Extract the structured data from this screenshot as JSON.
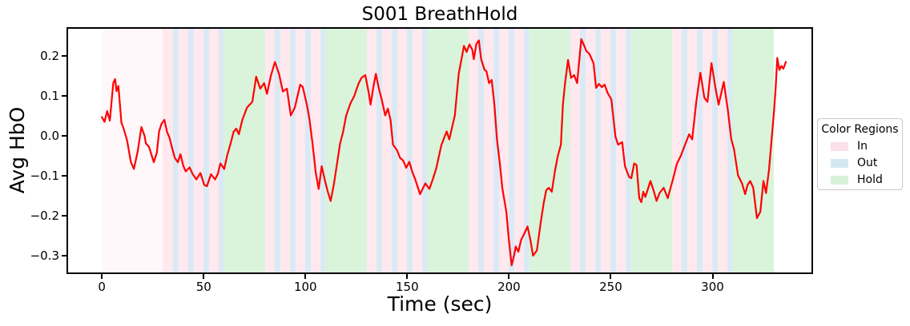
{
  "figure": {
    "title": "S001 BreathHold",
    "xlabel": "Time (sec)",
    "ylabel": "Avg HbO"
  },
  "axes": {
    "xtick_labels": [
      "0",
      "50",
      "100",
      "150",
      "200",
      "250",
      "300"
    ],
    "ytick_labels": [
      "0.2",
      "0.1",
      "0.0",
      "−0.1",
      "−0.2",
      "−0.3"
    ]
  },
  "legend": {
    "title": "Color Regions",
    "items": [
      {
        "label": "In",
        "color": "#fbdfe9"
      },
      {
        "label": "Out",
        "color": "#d4e8f3"
      },
      {
        "label": "Hold",
        "color": "#d7f2d9"
      }
    ]
  },
  "chart_data": {
    "type": "line",
    "title": "S001 BreathHold",
    "xlabel": "Time (sec)",
    "ylabel": "Avg HbO",
    "xlim": [
      -16.6,
      348.6
    ],
    "ylim": [
      -0.342,
      0.268
    ],
    "xticks": [
      0,
      50,
      100,
      150,
      200,
      250,
      300
    ],
    "yticks": [
      0.2,
      0.1,
      0.0,
      -0.1,
      -0.2,
      -0.3
    ],
    "grid": false,
    "legend_position": "center right, outside axes",
    "region_colors": {
      "rest": "#fff8fa",
      "in": "#ffe9ef",
      "out": "#d9eaf5",
      "hold": "#d9f4db"
    },
    "regions": {
      "rest": [
        [
          0,
          30
        ]
      ],
      "in": [
        [
          30,
          35
        ],
        [
          37.5,
          42.5
        ],
        [
          45,
          50
        ],
        [
          52.5,
          57.5
        ],
        [
          80,
          85
        ],
        [
          87.5,
          92.5
        ],
        [
          95,
          100
        ],
        [
          102.5,
          107.5
        ],
        [
          130,
          135
        ],
        [
          137.5,
          142.5
        ],
        [
          145,
          150
        ],
        [
          152.5,
          157.5
        ],
        [
          180,
          185
        ],
        [
          187.5,
          192.5
        ],
        [
          195,
          200
        ],
        [
          202.5,
          207.5
        ],
        [
          230,
          235
        ],
        [
          237.5,
          242.5
        ],
        [
          245,
          250
        ],
        [
          252.5,
          257.5
        ],
        [
          280,
          285
        ],
        [
          287.5,
          292.5
        ],
        [
          295,
          300
        ],
        [
          302.5,
          307.5
        ]
      ],
      "out": [
        [
          35,
          37.5
        ],
        [
          42.5,
          45
        ],
        [
          50,
          52.5
        ],
        [
          57.5,
          60
        ],
        [
          85,
          87.5
        ],
        [
          92.5,
          95
        ],
        [
          100,
          102.5
        ],
        [
          107.5,
          110
        ],
        [
          135,
          137.5
        ],
        [
          142.5,
          145
        ],
        [
          150,
          152.5
        ],
        [
          157.5,
          160
        ],
        [
          185,
          187.5
        ],
        [
          192.5,
          195
        ],
        [
          200,
          202.5
        ],
        [
          207.5,
          210
        ],
        [
          235,
          237.5
        ],
        [
          242.5,
          245
        ],
        [
          250,
          252.5
        ],
        [
          257.5,
          260
        ],
        [
          285,
          287.5
        ],
        [
          292.5,
          295
        ],
        [
          300,
          302.5
        ],
        [
          307.5,
          310
        ]
      ],
      "hold": [
        [
          60,
          80
        ],
        [
          110,
          130
        ],
        [
          160,
          180
        ],
        [
          210,
          230
        ],
        [
          260,
          280
        ],
        [
          310,
          330
        ]
      ]
    },
    "series": [
      {
        "name": "Avg HbO",
        "color": "#ff0000",
        "points": [
          [
            0,
            0.047
          ],
          [
            1.3,
            0.035
          ],
          [
            2.6,
            0.062
          ],
          [
            3.9,
            0.038
          ],
          [
            5.6,
            0.132
          ],
          [
            6.5,
            0.142
          ],
          [
            7.2,
            0.112
          ],
          [
            8.1,
            0.125
          ],
          [
            9.6,
            0.032
          ],
          [
            10.5,
            0.021
          ],
          [
            12.4,
            -0.012
          ],
          [
            14.2,
            -0.065
          ],
          [
            15.7,
            -0.083
          ],
          [
            17.6,
            -0.039
          ],
          [
            19.4,
            0.022
          ],
          [
            21,
            0.0
          ],
          [
            21.6,
            -0.019
          ],
          [
            23.2,
            -0.028
          ],
          [
            25.5,
            -0.066
          ],
          [
            27,
            -0.042
          ],
          [
            28.1,
            0.011
          ],
          [
            29.3,
            0.03
          ],
          [
            30.7,
            0.04
          ],
          [
            32,
            0.01
          ],
          [
            33.3,
            -0.006
          ],
          [
            34.5,
            -0.03
          ],
          [
            35.8,
            -0.055
          ],
          [
            37.3,
            -0.066
          ],
          [
            38.6,
            -0.046
          ],
          [
            40,
            -0.075
          ],
          [
            41.2,
            -0.089
          ],
          [
            43.1,
            -0.079
          ],
          [
            44.5,
            -0.095
          ],
          [
            46.4,
            -0.109
          ],
          [
            48.4,
            -0.093
          ],
          [
            50.3,
            -0.123
          ],
          [
            51.6,
            -0.126
          ],
          [
            53.6,
            -0.096
          ],
          [
            55.6,
            -0.109
          ],
          [
            57,
            -0.095
          ],
          [
            58.2,
            -0.069
          ],
          [
            60.1,
            -0.083
          ],
          [
            61.5,
            -0.05
          ],
          [
            63.4,
            -0.016
          ],
          [
            64.7,
            0.01
          ],
          [
            66,
            0.018
          ],
          [
            67.3,
            0.004
          ],
          [
            69,
            0.04
          ],
          [
            71.3,
            0.071
          ],
          [
            73.9,
            0.085
          ],
          [
            75.8,
            0.148
          ],
          [
            77.8,
            0.118
          ],
          [
            79.7,
            0.132
          ],
          [
            81.1,
            0.105
          ],
          [
            83,
            0.15
          ],
          [
            85,
            0.185
          ],
          [
            87,
            0.155
          ],
          [
            88.9,
            0.111
          ],
          [
            90.9,
            0.118
          ],
          [
            92.8,
            0.051
          ],
          [
            94.8,
            0.071
          ],
          [
            97.4,
            0.128
          ],
          [
            98.7,
            0.122
          ],
          [
            100.7,
            0.078
          ],
          [
            102,
            0.04
          ],
          [
            103.5,
            -0.02
          ],
          [
            105,
            -0.09
          ],
          [
            106.5,
            -0.133
          ],
          [
            108,
            -0.076
          ],
          [
            109.5,
            -0.11
          ],
          [
            111,
            -0.14
          ],
          [
            112.4,
            -0.163
          ],
          [
            114,
            -0.12
          ],
          [
            115.5,
            -0.07
          ],
          [
            117,
            -0.02
          ],
          [
            118.5,
            0.01
          ],
          [
            120,
            0.05
          ],
          [
            122,
            0.08
          ],
          [
            124,
            0.1
          ],
          [
            126,
            0.13
          ],
          [
            127.5,
            0.145
          ],
          [
            129.4,
            0.152
          ],
          [
            131,
            0.11
          ],
          [
            132,
            0.078
          ],
          [
            133.3,
            0.12
          ],
          [
            134.6,
            0.155
          ],
          [
            136,
            0.12
          ],
          [
            137.5,
            0.09
          ],
          [
            139.2,
            0.051
          ],
          [
            140.5,
            0.068
          ],
          [
            141.8,
            0.04
          ],
          [
            143,
            -0.022
          ],
          [
            145,
            -0.036
          ],
          [
            146.5,
            -0.055
          ],
          [
            148,
            -0.062
          ],
          [
            149.5,
            -0.08
          ],
          [
            151,
            -0.065
          ],
          [
            152.5,
            -0.09
          ],
          [
            154,
            -0.11
          ],
          [
            156.3,
            -0.146
          ],
          [
            158.9,
            -0.119
          ],
          [
            160.9,
            -0.133
          ],
          [
            162.5,
            -0.11
          ],
          [
            164.2,
            -0.083
          ],
          [
            166.8,
            -0.023
          ],
          [
            169.4,
            0.011
          ],
          [
            170.7,
            -0.009
          ],
          [
            172,
            0.02
          ],
          [
            173.4,
            0.051
          ],
          [
            175.3,
            0.155
          ],
          [
            176.6,
            0.19
          ],
          [
            177.9,
            0.225
          ],
          [
            179.2,
            0.21
          ],
          [
            180.6,
            0.229
          ],
          [
            182,
            0.215
          ],
          [
            182.7,
            0.192
          ],
          [
            184,
            0.23
          ],
          [
            185.2,
            0.239
          ],
          [
            186.3,
            0.192
          ],
          [
            188,
            0.165
          ],
          [
            188.9,
            0.162
          ],
          [
            190.2,
            0.132
          ],
          [
            191.5,
            0.14
          ],
          [
            192.8,
            0.08
          ],
          [
            194.1,
            -0.009
          ],
          [
            195.5,
            -0.07
          ],
          [
            196.7,
            -0.13
          ],
          [
            198.7,
            -0.19
          ],
          [
            200,
            -0.263
          ],
          [
            201.3,
            -0.324
          ],
          [
            202.5,
            -0.3
          ],
          [
            203.3,
            -0.277
          ],
          [
            204.6,
            -0.29
          ],
          [
            206,
            -0.26
          ],
          [
            207.5,
            -0.245
          ],
          [
            209.1,
            -0.227
          ],
          [
            210.5,
            -0.26
          ],
          [
            211.8,
            -0.3
          ],
          [
            213.7,
            -0.287
          ],
          [
            215.5,
            -0.22
          ],
          [
            217,
            -0.17
          ],
          [
            218.3,
            -0.136
          ],
          [
            219.6,
            -0.13
          ],
          [
            221,
            -0.14
          ],
          [
            222.5,
            -0.09
          ],
          [
            224,
            -0.05
          ],
          [
            225.5,
            -0.022
          ],
          [
            226.5,
            0.078
          ],
          [
            227.5,
            0.13
          ],
          [
            229,
            0.19
          ],
          [
            230.5,
            0.145
          ],
          [
            232,
            0.152
          ],
          [
            233.5,
            0.132
          ],
          [
            235.5,
            0.242
          ],
          [
            237,
            0.225
          ],
          [
            238,
            0.212
          ],
          [
            239.5,
            0.205
          ],
          [
            241.5,
            0.182
          ],
          [
            242.8,
            0.12
          ],
          [
            244.2,
            0.13
          ],
          [
            245.6,
            0.122
          ],
          [
            247,
            0.128
          ],
          [
            248.4,
            0.108
          ],
          [
            250.3,
            0.091
          ],
          [
            252.3,
            -0.002
          ],
          [
            253.6,
            -0.022
          ],
          [
            255.6,
            -0.016
          ],
          [
            257,
            -0.076
          ],
          [
            259,
            -0.103
          ],
          [
            260.1,
            -0.106
          ],
          [
            261.5,
            -0.069
          ],
          [
            262.7,
            -0.073
          ],
          [
            264,
            -0.156
          ],
          [
            265,
            -0.166
          ],
          [
            266,
            -0.14
          ],
          [
            267,
            -0.153
          ],
          [
            268,
            -0.137
          ],
          [
            269.5,
            -0.113
          ],
          [
            271,
            -0.136
          ],
          [
            272.5,
            -0.163
          ],
          [
            274,
            -0.143
          ],
          [
            276,
            -0.13
          ],
          [
            278,
            -0.156
          ],
          [
            280.5,
            -0.109
          ],
          [
            282.5,
            -0.07
          ],
          [
            284.5,
            -0.049
          ],
          [
            286.5,
            -0.022
          ],
          [
            288.5,
            0.004
          ],
          [
            290,
            -0.009
          ],
          [
            292,
            0.085
          ],
          [
            294,
            0.158
          ],
          [
            296,
            0.095
          ],
          [
            297.5,
            0.085
          ],
          [
            299.5,
            0.182
          ],
          [
            301.5,
            0.118
          ],
          [
            303,
            0.078
          ],
          [
            305.5,
            0.135
          ],
          [
            307.5,
            0.065
          ],
          [
            309.2,
            -0.009
          ],
          [
            310.5,
            -0.032
          ],
          [
            312.5,
            -0.099
          ],
          [
            314.5,
            -0.119
          ],
          [
            316,
            -0.146
          ],
          [
            317.2,
            -0.123
          ],
          [
            318.5,
            -0.113
          ],
          [
            320,
            -0.13
          ],
          [
            321.8,
            -0.206
          ],
          [
            323.5,
            -0.19
          ],
          [
            325,
            -0.113
          ],
          [
            326.3,
            -0.143
          ],
          [
            327.8,
            -0.083
          ],
          [
            329,
            -0.009
          ],
          [
            330.2,
            0.06
          ],
          [
            331,
            0.12
          ],
          [
            331.8,
            0.195
          ],
          [
            332.8,
            0.165
          ],
          [
            333.8,
            0.175
          ],
          [
            334.8,
            0.168
          ],
          [
            336,
            0.185
          ]
        ]
      }
    ]
  }
}
